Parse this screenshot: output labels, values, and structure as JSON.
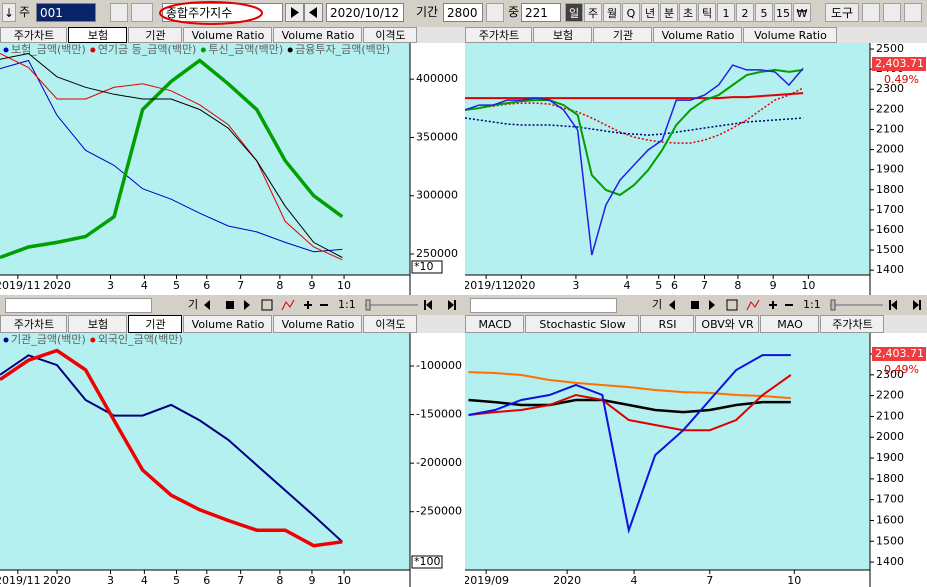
{
  "toolbar": {
    "arrow": "↓",
    "type": "주",
    "code": "001",
    "name": "종합주가지수",
    "date": "2020/10/12",
    "period_label": "기간",
    "period": "2800",
    "mid_label": "중",
    "mid": "221",
    "intervals": [
      "일",
      "주",
      "월",
      "Q",
      "년",
      "분",
      "초",
      "틱",
      "1",
      "2",
      "5",
      "15",
      "₩"
    ],
    "selected_interval": 0,
    "tools": "도구"
  },
  "controls": {
    "label": "기",
    "ratio": "1:1"
  },
  "panels": [
    {
      "type": "line",
      "tabs": [
        "주가차트",
        "보험",
        "기관",
        "Volume Ratio",
        "Volume Ratio",
        "이격도"
      ],
      "selected_tab": 1,
      "xlim": [
        0,
        230
      ],
      "xticks": [
        {
          "value": 10,
          "label": "2019/11"
        },
        {
          "value": 32,
          "label": "2020"
        },
        {
          "value": 62,
          "label": "3"
        },
        {
          "value": 81,
          "label": "4"
        },
        {
          "value": 99,
          "label": "5"
        },
        {
          "value": 116,
          "label": "6"
        },
        {
          "value": 135,
          "label": "7"
        },
        {
          "value": 157,
          "label": "8"
        },
        {
          "value": 175,
          "label": "9"
        },
        {
          "value": 193,
          "label": "10"
        }
      ],
      "ylim": [
        232000,
        431000
      ],
      "yticks": [
        250000,
        300000,
        350000,
        400000
      ],
      "footer": "*10",
      "x": [
        0,
        16,
        32,
        48,
        64,
        80,
        96,
        112,
        128,
        144,
        160,
        176,
        192
      ],
      "series": [
        {
          "name": "보험_금액(백만)",
          "color": "#0000c8",
          "width": 1,
          "values": [
            409000,
            416000,
            369000,
            339000,
            326000,
            306000,
            297000,
            285000,
            274000,
            269000,
            260000,
            252000,
            254000
          ]
        },
        {
          "name": "연기금 등_금액(백만)",
          "color": "#e00000",
          "width": 1,
          "values": [
            422000,
            410000,
            383000,
            383000,
            393000,
            396000,
            390000,
            378000,
            361000,
            330000,
            278000,
            256000,
            245000
          ]
        },
        {
          "name": "투신_금액(백만)",
          "color": "#00a000",
          "width": 3.5,
          "values": [
            247000,
            256000,
            260000,
            265000,
            282000,
            374000,
            398000,
            416000,
            396000,
            374000,
            330000,
            300000,
            282000
          ]
        },
        {
          "name": "금융투자_금액(백만)",
          "color": "#000000",
          "width": 1,
          "values": [
            417000,
            422000,
            402000,
            393000,
            387000,
            383000,
            383000,
            374000,
            358000,
            330000,
            291000,
            260000,
            247000
          ]
        }
      ]
    },
    {
      "type": "line",
      "tabs": [
        "주가차트",
        "보험",
        "기관",
        "Volume Ratio",
        "Volume Ratio"
      ],
      "xlim": [
        0,
        230
      ],
      "xticks": [
        {
          "value": 12,
          "label": "2019/11"
        },
        {
          "value": 32,
          "label": "2020"
        },
        {
          "value": 63,
          "label": "3"
        },
        {
          "value": 92,
          "label": "4"
        },
        {
          "value": 110,
          "label": "5"
        },
        {
          "value": 119,
          "label": "6"
        },
        {
          "value": 136,
          "label": "7"
        },
        {
          "value": 155,
          "label": "8"
        },
        {
          "value": 175,
          "label": "9"
        },
        {
          "value": 195,
          "label": "10"
        }
      ],
      "ylim": [
        1376,
        2530
      ],
      "yticks": [
        2500,
        2400,
        2300,
        2200,
        2100,
        2000,
        1900,
        1800,
        1700,
        1600,
        1500,
        1400
      ],
      "price_label": "2,403.71",
      "change_label": "0.49%",
      "x": [
        0,
        8,
        16,
        24,
        32,
        40,
        48,
        56,
        64,
        72,
        80,
        88,
        96,
        104,
        112,
        120,
        128,
        136,
        144,
        152,
        160,
        168,
        176,
        184,
        192
      ],
      "series": [
        {
          "color": "#e00000",
          "width": 2,
          "values": [
            2256,
            2256,
            2256,
            2256,
            2256,
            2256,
            2256,
            2256,
            2256,
            2256,
            2256,
            2256,
            2256,
            2256,
            2256,
            2256,
            2256,
            2256,
            2256,
            2261,
            2261,
            2266,
            2271,
            2276,
            2281
          ]
        },
        {
          "color": "#e00000",
          "width": 1.5,
          "style": "dotted",
          "values": [
            2197,
            2206,
            2216,
            2226,
            2231,
            2231,
            2226,
            2206,
            2187,
            2157,
            2122,
            2087,
            2062,
            2047,
            2037,
            2032,
            2032,
            2047,
            2072,
            2107,
            2147,
            2197,
            2246,
            2271,
            2306
          ]
        },
        {
          "color": "#000080",
          "width": 1.5,
          "style": "dotted",
          "values": [
            2157,
            2147,
            2137,
            2127,
            2122,
            2122,
            2122,
            2117,
            2112,
            2102,
            2092,
            2082,
            2077,
            2072,
            2077,
            2087,
            2097,
            2107,
            2117,
            2127,
            2137,
            2142,
            2147,
            2152,
            2157
          ]
        },
        {
          "color": "#00a000",
          "width": 2,
          "values": [
            2197,
            2206,
            2221,
            2231,
            2241,
            2246,
            2246,
            2221,
            2172,
            1873,
            1799,
            1774,
            1823,
            1898,
            1998,
            2122,
            2197,
            2246,
            2271,
            2321,
            2371,
            2386,
            2396,
            2386,
            2396
          ]
        },
        {
          "color": "#2020e0",
          "width": 1.5,
          "values": [
            2197,
            2221,
            2221,
            2246,
            2246,
            2256,
            2246,
            2197,
            2097,
            1475,
            1724,
            1848,
            1923,
            1998,
            2047,
            2246,
            2246,
            2271,
            2321,
            2420,
            2396,
            2396,
            2386,
            2321,
            2404
          ]
        }
      ]
    },
    {
      "type": "line",
      "tabs": [
        "주가차트",
        "보험",
        "기관",
        "Volume Ratio",
        "Volume Ratio",
        "이격도"
      ],
      "selected_tab": 2,
      "xlim": [
        0,
        230
      ],
      "xticks": [
        {
          "value": 10,
          "label": "2019/11"
        },
        {
          "value": 32,
          "label": "2020"
        },
        {
          "value": 62,
          "label": "3"
        },
        {
          "value": 81,
          "label": "4"
        },
        {
          "value": 99,
          "label": "5"
        },
        {
          "value": 116,
          "label": "6"
        },
        {
          "value": 135,
          "label": "7"
        },
        {
          "value": 157,
          "label": "8"
        },
        {
          "value": 175,
          "label": "9"
        },
        {
          "value": 193,
          "label": "10"
        }
      ],
      "ylim": [
        -310000,
        -66000
      ],
      "yticks": [
        -100000,
        -150000,
        -200000,
        -250000
      ],
      "footer": "*100",
      "x": [
        0,
        16,
        32,
        48,
        64,
        80,
        96,
        112,
        128,
        144,
        160,
        176,
        192
      ],
      "series": [
        {
          "name": "기관_금액(백만)",
          "color": "#000080",
          "width": 2,
          "values": [
            -109000,
            -89000,
            -99000,
            -135000,
            -151000,
            -151000,
            -140000,
            -156000,
            -176000,
            -202000,
            -228000,
            -254000,
            -281000
          ]
        },
        {
          "name": "외국인_금액(백만)",
          "color": "#f00000",
          "width": 3.5,
          "values": [
            -114000,
            -94000,
            -84000,
            -104000,
            -156000,
            -207000,
            -233000,
            -248000,
            -259000,
            -269000,
            -269000,
            -285000,
            -281000
          ]
        }
      ]
    },
    {
      "type": "line",
      "tabs": [
        "MACD",
        "Stochastic Slow",
        "RSI",
        "OBV와 VR",
        "MAO",
        "주가차트"
      ],
      "xlim": [
        0,
        230
      ],
      "xticks": [
        {
          "value": 12,
          "label": "2019/09"
        },
        {
          "value": 58,
          "label": "2020"
        },
        {
          "value": 96,
          "label": "4"
        },
        {
          "value": 139,
          "label": "7"
        },
        {
          "value": 187,
          "label": "10"
        }
      ],
      "ylim": [
        1362,
        2501
      ],
      "yticks": [
        2400,
        2300,
        2200,
        2100,
        2000,
        1900,
        1800,
        1700,
        1600,
        1500,
        1400
      ],
      "price_label": "2,403.71",
      "change_label": "0.49%",
      "x": [
        2,
        17,
        32,
        48,
        63,
        78,
        93,
        108,
        124,
        139,
        154,
        169,
        185
      ],
      "series": [
        {
          "color": "#ff7000",
          "width": 2,
          "values": [
            2313,
            2309,
            2299,
            2275,
            2261,
            2251,
            2241,
            2227,
            2217,
            2213,
            2203,
            2198,
            2188
          ]
        },
        {
          "color": "#000000",
          "width": 2.5,
          "values": [
            2179,
            2169,
            2155,
            2155,
            2179,
            2179,
            2155,
            2131,
            2121,
            2131,
            2155,
            2169,
            2169
          ]
        },
        {
          "color": "#e00000",
          "width": 2,
          "values": [
            2107,
            2121,
            2131,
            2155,
            2203,
            2179,
            2083,
            2059,
            2034,
            2034,
            2083,
            2203,
            2299
          ]
        },
        {
          "color": "#1010e0",
          "width": 2,
          "values": [
            2107,
            2131,
            2179,
            2203,
            2251,
            2203,
            1553,
            1914,
            2034,
            2179,
            2323,
            2395,
            2395
          ]
        }
      ]
    }
  ]
}
